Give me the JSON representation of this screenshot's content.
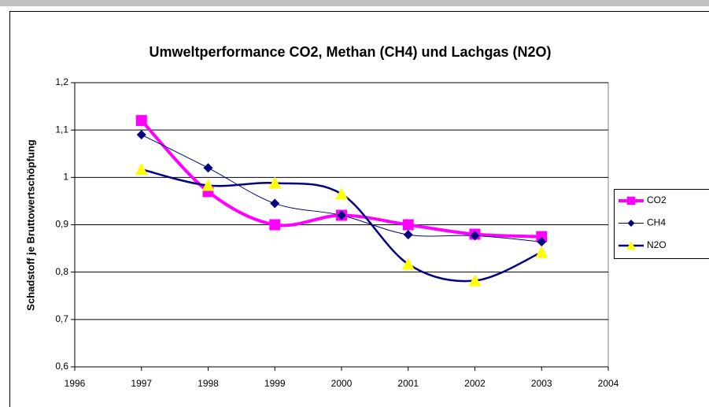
{
  "chart_data": {
    "type": "line",
    "title": "Umweltperformance CO2, Methan (CH4) und Lachgas (N2O)",
    "y_label": "Schadstoff je Bruttowertschöpfung",
    "x": [
      1997,
      1998,
      1999,
      2000,
      2001,
      2002,
      2003
    ],
    "xlim": [
      1996,
      2004
    ],
    "xticks": [
      1996,
      1997,
      1998,
      1999,
      2000,
      2001,
      2002,
      2003,
      2004
    ],
    "ylim": [
      0.6,
      1.2
    ],
    "yticks": [
      {
        "value": 0.6,
        "label": "0,6"
      },
      {
        "value": 0.7,
        "label": "0,7"
      },
      {
        "value": 0.8,
        "label": "0,8"
      },
      {
        "value": 0.9,
        "label": "0,9"
      },
      1,
      {
        "value": 1.1,
        "label": "1,1"
      },
      {
        "value": 1.2,
        "label": "1,2"
      }
    ],
    "grid": true,
    "legend": "right",
    "series": [
      {
        "name": "CO2",
        "color": "#ff00ff",
        "marker_color": "#ff00ff",
        "marker": "square",
        "values": [
          1.12,
          0.97,
          0.9,
          0.92,
          0.9,
          0.88,
          0.875
        ]
      },
      {
        "name": "CH4",
        "color": "#000080",
        "marker_color": "#000080",
        "marker": "diamond",
        "values": [
          1.09,
          1.02,
          0.945,
          0.92,
          0.879,
          0.877,
          0.864
        ]
      },
      {
        "name": "N2O",
        "color": "#000080",
        "marker_color": "#ffff00",
        "marker": "triangle",
        "values": [
          1.017,
          0.983,
          0.988,
          0.965,
          0.817,
          0.782,
          0.842
        ]
      }
    ]
  }
}
